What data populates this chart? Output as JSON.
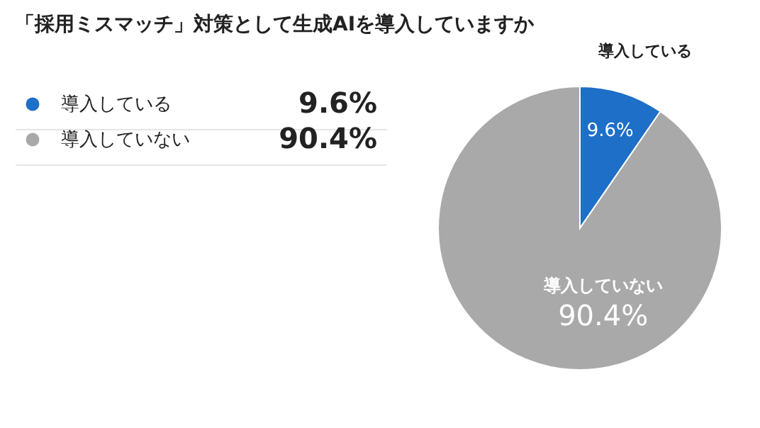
{
  "chart_data": {
    "type": "pie",
    "title": "「採用ミスマッチ」対策として生成AIを導入していますか",
    "categories": [
      "導入している",
      "導入していない"
    ],
    "values": [
      9.6,
      90.4
    ],
    "colors": [
      "#1e6fc8",
      "#a9a9a9"
    ],
    "value_labels": [
      "9.6%",
      "90.4%"
    ],
    "legend": "left"
  }
}
